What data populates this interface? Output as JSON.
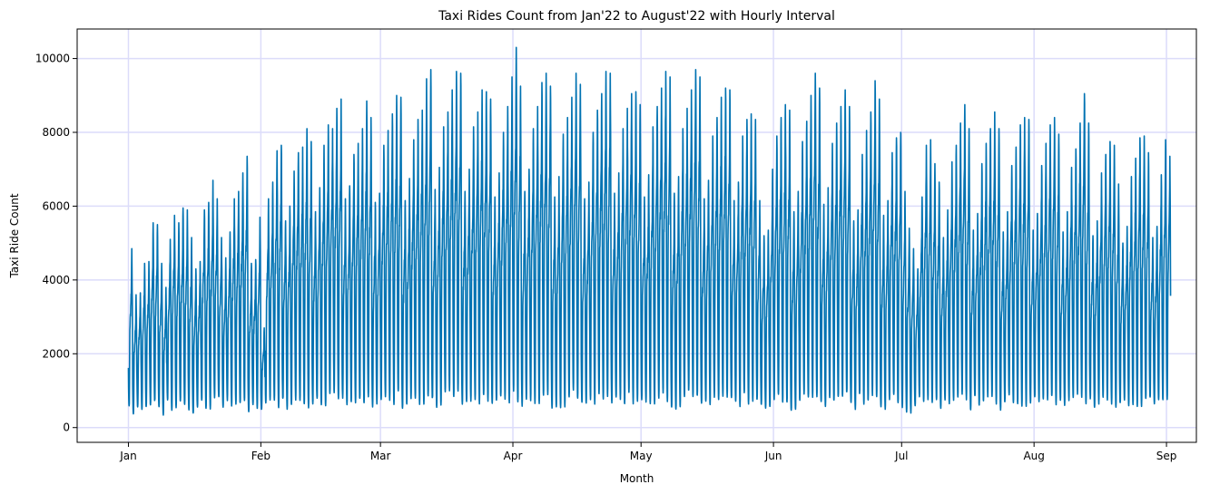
{
  "chart_data": {
    "type": "line",
    "title": "Taxi Rides Count from Jan'22 to August'22 with Hourly Interval",
    "xlabel": "Month",
    "ylabel": "Taxi Ride Count",
    "x_range": [
      "2022-01-01",
      "2022-09-01"
    ],
    "xlim": [
      "2021-12-20",
      "2022-09-08"
    ],
    "ylim": [
      -400,
      10800
    ],
    "x_ticks": [
      {
        "label": "Jan",
        "date": "2022-01-01"
      },
      {
        "label": "Feb",
        "date": "2022-02-01"
      },
      {
        "label": "Mar",
        "date": "2022-03-01"
      },
      {
        "label": "Apr",
        "date": "2022-04-01"
      },
      {
        "label": "May",
        "date": "2022-05-01"
      },
      {
        "label": "Jun",
        "date": "2022-06-01"
      },
      {
        "label": "Jul",
        "date": "2022-07-01"
      },
      {
        "label": "Aug",
        "date": "2022-08-01"
      },
      {
        "label": "Sep",
        "date": "2022-09-01"
      }
    ],
    "y_ticks": [
      {
        "label": "0",
        "value": 0
      },
      {
        "label": "2000",
        "value": 2000
      },
      {
        "label": "4000",
        "value": 4000
      },
      {
        "label": "6000",
        "value": 6000
      },
      {
        "label": "8000",
        "value": 8000
      },
      {
        "label": "10000",
        "value": 10000
      }
    ],
    "grid": true,
    "grid_color": "#dcdcfa",
    "line_color": "#0072b2",
    "series": [
      {
        "interval": "hourly",
        "daily_peaks": [
          [
            "2022-01-01",
            4850
          ],
          [
            "2022-01-02",
            3600
          ],
          [
            "2022-01-03",
            3650
          ],
          [
            "2022-01-04",
            4450
          ],
          [
            "2022-01-05",
            4500
          ],
          [
            "2022-01-06",
            5550
          ],
          [
            "2022-01-07",
            5500
          ],
          [
            "2022-01-08",
            4450
          ],
          [
            "2022-01-09",
            3800
          ],
          [
            "2022-01-10",
            5100
          ],
          [
            "2022-01-11",
            5750
          ],
          [
            "2022-01-12",
            5550
          ],
          [
            "2022-01-13",
            5950
          ],
          [
            "2022-01-14",
            5900
          ],
          [
            "2022-01-15",
            5150
          ],
          [
            "2022-01-16",
            4300
          ],
          [
            "2022-01-17",
            4500
          ],
          [
            "2022-01-18",
            5900
          ],
          [
            "2022-01-19",
            6100
          ],
          [
            "2022-01-20",
            6700
          ],
          [
            "2022-01-21",
            6200
          ],
          [
            "2022-01-22",
            5150
          ],
          [
            "2022-01-23",
            4600
          ],
          [
            "2022-01-24",
            5300
          ],
          [
            "2022-01-25",
            6200
          ],
          [
            "2022-01-26",
            6400
          ],
          [
            "2022-01-27",
            6900
          ],
          [
            "2022-01-28",
            7350
          ],
          [
            "2022-01-29",
            4450
          ],
          [
            "2022-01-30",
            4550
          ],
          [
            "2022-01-31",
            5700
          ],
          [
            "2022-02-01",
            2700
          ],
          [
            "2022-02-02",
            6200
          ],
          [
            "2022-02-03",
            6650
          ],
          [
            "2022-02-04",
            7500
          ],
          [
            "2022-02-05",
            7650
          ],
          [
            "2022-02-06",
            5600
          ],
          [
            "2022-02-07",
            6000
          ],
          [
            "2022-02-08",
            6950
          ],
          [
            "2022-02-09",
            7450
          ],
          [
            "2022-02-10",
            7600
          ],
          [
            "2022-02-11",
            8100
          ],
          [
            "2022-02-12",
            7750
          ],
          [
            "2022-02-13",
            5850
          ],
          [
            "2022-02-14",
            6500
          ],
          [
            "2022-02-15",
            7650
          ],
          [
            "2022-02-16",
            8200
          ],
          [
            "2022-02-17",
            8100
          ],
          [
            "2022-02-18",
            8650
          ],
          [
            "2022-02-19",
            8900
          ],
          [
            "2022-02-20",
            6200
          ],
          [
            "2022-02-21",
            6550
          ],
          [
            "2022-02-22",
            7400
          ],
          [
            "2022-02-23",
            7700
          ],
          [
            "2022-02-24",
            8100
          ],
          [
            "2022-02-25",
            8850
          ],
          [
            "2022-02-26",
            8400
          ],
          [
            "2022-02-27",
            6100
          ],
          [
            "2022-02-28",
            6350
          ],
          [
            "2022-03-01",
            7650
          ],
          [
            "2022-03-02",
            8050
          ],
          [
            "2022-03-03",
            8500
          ],
          [
            "2022-03-04",
            9000
          ],
          [
            "2022-03-05",
            8950
          ],
          [
            "2022-03-06",
            6150
          ],
          [
            "2022-03-07",
            6750
          ],
          [
            "2022-03-08",
            7800
          ],
          [
            "2022-03-09",
            8350
          ],
          [
            "2022-03-10",
            8600
          ],
          [
            "2022-03-11",
            9450
          ],
          [
            "2022-03-12",
            9700
          ],
          [
            "2022-03-13",
            6450
          ],
          [
            "2022-03-14",
            7050
          ],
          [
            "2022-03-15",
            8150
          ],
          [
            "2022-03-16",
            8550
          ],
          [
            "2022-03-17",
            9150
          ],
          [
            "2022-03-18",
            9650
          ],
          [
            "2022-03-19",
            9600
          ],
          [
            "2022-03-20",
            6400
          ],
          [
            "2022-03-21",
            7000
          ],
          [
            "2022-03-22",
            8150
          ],
          [
            "2022-03-23",
            8550
          ],
          [
            "2022-03-24",
            9150
          ],
          [
            "2022-03-25",
            9100
          ],
          [
            "2022-03-26",
            8900
          ],
          [
            "2022-03-27",
            6250
          ],
          [
            "2022-03-28",
            6900
          ],
          [
            "2022-03-29",
            8000
          ],
          [
            "2022-03-30",
            8700
          ],
          [
            "2022-03-31",
            9500
          ],
          [
            "2022-04-01",
            10300
          ],
          [
            "2022-04-02",
            9250
          ],
          [
            "2022-04-03",
            6400
          ],
          [
            "2022-04-04",
            7000
          ],
          [
            "2022-04-05",
            8100
          ],
          [
            "2022-04-06",
            8700
          ],
          [
            "2022-04-07",
            9350
          ],
          [
            "2022-04-08",
            9600
          ],
          [
            "2022-04-09",
            9250
          ],
          [
            "2022-04-10",
            6250
          ],
          [
            "2022-04-11",
            6800
          ],
          [
            "2022-04-12",
            7950
          ],
          [
            "2022-04-13",
            8400
          ],
          [
            "2022-04-14",
            8950
          ],
          [
            "2022-04-15",
            9600
          ],
          [
            "2022-04-16",
            9300
          ],
          [
            "2022-04-17",
            6200
          ],
          [
            "2022-04-18",
            6650
          ],
          [
            "2022-04-19",
            8000
          ],
          [
            "2022-04-20",
            8600
          ],
          [
            "2022-04-21",
            9050
          ],
          [
            "2022-04-22",
            9650
          ],
          [
            "2022-04-23",
            9600
          ],
          [
            "2022-04-24",
            6350
          ],
          [
            "2022-04-25",
            6900
          ],
          [
            "2022-04-26",
            8100
          ],
          [
            "2022-04-27",
            8650
          ],
          [
            "2022-04-28",
            9050
          ],
          [
            "2022-04-29",
            9100
          ],
          [
            "2022-04-30",
            8750
          ],
          [
            "2022-05-01",
            6250
          ],
          [
            "2022-05-02",
            6850
          ],
          [
            "2022-05-03",
            8150
          ],
          [
            "2022-05-04",
            8700
          ],
          [
            "2022-05-05",
            9200
          ],
          [
            "2022-05-06",
            9650
          ],
          [
            "2022-05-07",
            9500
          ],
          [
            "2022-05-08",
            6350
          ],
          [
            "2022-05-09",
            6800
          ],
          [
            "2022-05-10",
            8100
          ],
          [
            "2022-05-11",
            8650
          ],
          [
            "2022-05-12",
            9150
          ],
          [
            "2022-05-13",
            9700
          ],
          [
            "2022-05-14",
            9500
          ],
          [
            "2022-05-15",
            6200
          ],
          [
            "2022-05-16",
            6700
          ],
          [
            "2022-05-17",
            7900
          ],
          [
            "2022-05-18",
            8400
          ],
          [
            "2022-05-19",
            8950
          ],
          [
            "2022-05-20",
            9200
          ],
          [
            "2022-05-21",
            9150
          ],
          [
            "2022-05-22",
            6150
          ],
          [
            "2022-05-23",
            6650
          ],
          [
            "2022-05-24",
            7900
          ],
          [
            "2022-05-25",
            8350
          ],
          [
            "2022-05-26",
            8500
          ],
          [
            "2022-05-27",
            8350
          ],
          [
            "2022-05-28",
            6150
          ],
          [
            "2022-05-29",
            5200
          ],
          [
            "2022-05-30",
            5350
          ],
          [
            "2022-05-31",
            7000
          ],
          [
            "2022-06-01",
            7900
          ],
          [
            "2022-06-02",
            8400
          ],
          [
            "2022-06-03",
            8750
          ],
          [
            "2022-06-04",
            8600
          ],
          [
            "2022-06-05",
            5850
          ],
          [
            "2022-06-06",
            6400
          ],
          [
            "2022-06-07",
            7750
          ],
          [
            "2022-06-08",
            8300
          ],
          [
            "2022-06-09",
            9000
          ],
          [
            "2022-06-10",
            9600
          ],
          [
            "2022-06-11",
            9200
          ],
          [
            "2022-06-12",
            6050
          ],
          [
            "2022-06-13",
            6500
          ],
          [
            "2022-06-14",
            7700
          ],
          [
            "2022-06-15",
            8250
          ],
          [
            "2022-06-16",
            8700
          ],
          [
            "2022-06-17",
            9150
          ],
          [
            "2022-06-18",
            8700
          ],
          [
            "2022-06-19",
            5600
          ],
          [
            "2022-06-20",
            5900
          ],
          [
            "2022-06-21",
            7400
          ],
          [
            "2022-06-22",
            8050
          ],
          [
            "2022-06-23",
            8550
          ],
          [
            "2022-06-24",
            9400
          ],
          [
            "2022-06-25",
            8900
          ],
          [
            "2022-06-26",
            5750
          ],
          [
            "2022-06-27",
            6150
          ],
          [
            "2022-06-28",
            7450
          ],
          [
            "2022-06-29",
            7850
          ],
          [
            "2022-06-30",
            8000
          ],
          [
            "2022-07-01",
            6400
          ],
          [
            "2022-07-02",
            5400
          ],
          [
            "2022-07-03",
            4850
          ],
          [
            "2022-07-04",
            4300
          ],
          [
            "2022-07-05",
            6250
          ],
          [
            "2022-07-06",
            7650
          ],
          [
            "2022-07-07",
            7800
          ],
          [
            "2022-07-08",
            7150
          ],
          [
            "2022-07-09",
            6650
          ],
          [
            "2022-07-10",
            5150
          ],
          [
            "2022-07-11",
            5900
          ],
          [
            "2022-07-12",
            7200
          ],
          [
            "2022-07-13",
            7650
          ],
          [
            "2022-07-14",
            8250
          ],
          [
            "2022-07-15",
            8750
          ],
          [
            "2022-07-16",
            8100
          ],
          [
            "2022-07-17",
            5350
          ],
          [
            "2022-07-18",
            5800
          ],
          [
            "2022-07-19",
            7150
          ],
          [
            "2022-07-20",
            7700
          ],
          [
            "2022-07-21",
            8100
          ],
          [
            "2022-07-22",
            8550
          ],
          [
            "2022-07-23",
            8100
          ],
          [
            "2022-07-24",
            5300
          ],
          [
            "2022-07-25",
            5850
          ],
          [
            "2022-07-26",
            7100
          ],
          [
            "2022-07-27",
            7600
          ],
          [
            "2022-07-28",
            8200
          ],
          [
            "2022-07-29",
            8400
          ],
          [
            "2022-07-30",
            8350
          ],
          [
            "2022-07-31",
            5350
          ],
          [
            "2022-08-01",
            5800
          ],
          [
            "2022-08-02",
            7100
          ],
          [
            "2022-08-03",
            7700
          ],
          [
            "2022-08-04",
            8200
          ],
          [
            "2022-08-05",
            8400
          ],
          [
            "2022-08-06",
            7950
          ],
          [
            "2022-08-07",
            5300
          ],
          [
            "2022-08-08",
            5850
          ],
          [
            "2022-08-09",
            7050
          ],
          [
            "2022-08-10",
            7550
          ],
          [
            "2022-08-11",
            8250
          ],
          [
            "2022-08-12",
            9050
          ],
          [
            "2022-08-13",
            8250
          ],
          [
            "2022-08-14",
            5200
          ],
          [
            "2022-08-15",
            5600
          ],
          [
            "2022-08-16",
            6900
          ],
          [
            "2022-08-17",
            7400
          ],
          [
            "2022-08-18",
            7750
          ],
          [
            "2022-08-19",
            7650
          ],
          [
            "2022-08-20",
            6600
          ],
          [
            "2022-08-21",
            5000
          ],
          [
            "2022-08-22",
            5450
          ],
          [
            "2022-08-23",
            6800
          ],
          [
            "2022-08-24",
            7300
          ],
          [
            "2022-08-25",
            7850
          ],
          [
            "2022-08-26",
            7900
          ],
          [
            "2022-08-27",
            7450
          ],
          [
            "2022-08-28",
            5150
          ],
          [
            "2022-08-29",
            5450
          ],
          [
            "2022-08-30",
            6850
          ],
          [
            "2022-08-31",
            7800
          ],
          [
            "2022-09-01",
            7350
          ]
        ],
        "daily_trough_min": 150,
        "daily_trough_max": 600
      }
    ]
  }
}
